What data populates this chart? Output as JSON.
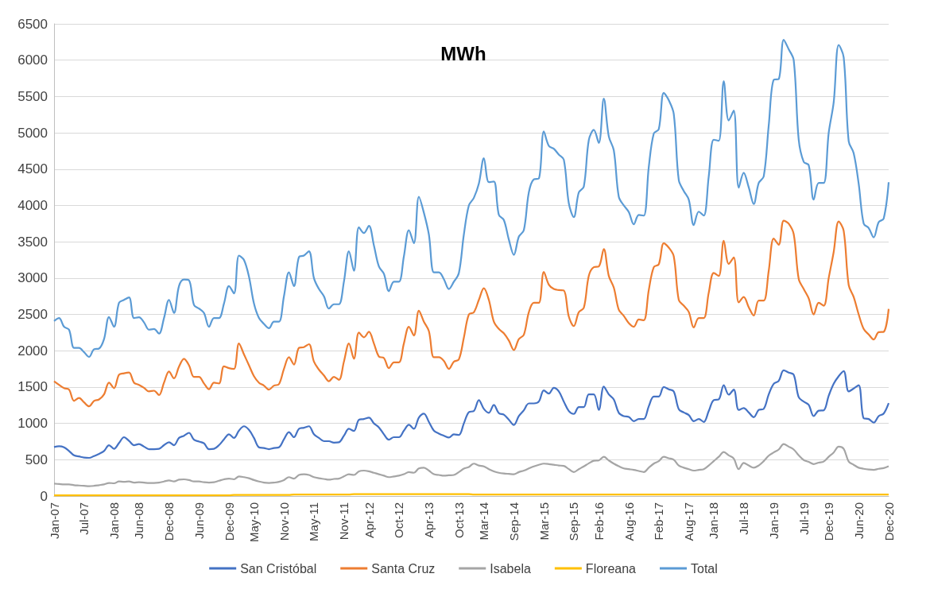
{
  "chart_data": {
    "type": "line",
    "title": "MWh",
    "categories": [
      "Jan-07",
      null,
      null,
      null,
      null,
      null,
      "Jul-07",
      null,
      null,
      null,
      null,
      null,
      "Jan-08",
      null,
      null,
      null,
      null,
      "Jun-08",
      null,
      null,
      null,
      null,
      null,
      "Dec-08",
      null,
      null,
      null,
      null,
      null,
      "Jun-09",
      null,
      null,
      null,
      null,
      null,
      "Dec-09",
      null,
      null,
      null,
      null,
      "May-10",
      null,
      null,
      null,
      null,
      null,
      "Nov-10",
      null,
      null,
      null,
      null,
      null,
      "May-11",
      null,
      null,
      null,
      null,
      null,
      "Nov-11",
      null,
      null,
      null,
      null,
      "Apr-12",
      null,
      null,
      null,
      null,
      null,
      "Oct-12",
      null,
      null,
      null,
      null,
      null,
      "Apr-13",
      null,
      null,
      null,
      null,
      null,
      "Oct-13",
      null,
      null,
      null,
      null,
      "Mar-14",
      null,
      null,
      null,
      null,
      null,
      "Sep-14",
      null,
      null,
      null,
      null,
      null,
      "Mar-15",
      null,
      null,
      null,
      null,
      null,
      "Sep-15",
      null,
      null,
      null,
      null,
      "Feb-16",
      null,
      null,
      null,
      null,
      null,
      "Aug-16",
      null,
      null,
      null,
      null,
      null,
      "Feb-17",
      null,
      null,
      null,
      null,
      null,
      "Aug-17",
      null,
      null,
      null,
      null,
      "Jan-18",
      null,
      null,
      null,
      null,
      null,
      "Jul-18",
      null,
      null,
      null,
      null,
      null,
      "Jan-19",
      null,
      null,
      null,
      null,
      null,
      "Jul-19",
      null,
      null,
      null,
      null,
      "Dec-19",
      null,
      null,
      null,
      null,
      null,
      "Jun-20",
      null,
      null,
      null,
      null,
      null,
      "Dec-20"
    ],
    "series": [
      {
        "name": "San Cristóbal",
        "color": "#4472c4",
        "values": [
          675,
          685,
          670,
          620,
          560,
          545,
          530,
          525,
          550,
          580,
          620,
          700,
          650,
          730,
          810,
          760,
          700,
          715,
          680,
          645,
          645,
          650,
          700,
          740,
          700,
          800,
          830,
          870,
          775,
          750,
          725,
          645,
          650,
          700,
          780,
          850,
          800,
          900,
          960,
          910,
          800,
          670,
          660,
          645,
          660,
          670,
          780,
          880,
          810,
          925,
          940,
          960,
          850,
          800,
          755,
          755,
          735,
          740,
          830,
          925,
          895,
          1050,
          1060,
          1080,
          1000,
          945,
          850,
          775,
          810,
          810,
          900,
          980,
          925,
          1080,
          1135,
          1020,
          900,
          860,
          830,
          805,
          850,
          840,
          1000,
          1155,
          1170,
          1320,
          1200,
          1145,
          1255,
          1140,
          1120,
          1050,
          978,
          1100,
          1180,
          1275,
          1275,
          1300,
          1455,
          1410,
          1490,
          1440,
          1300,
          1170,
          1130,
          1225,
          1225,
          1400,
          1400,
          1185,
          1505,
          1400,
          1330,
          1145,
          1100,
          1090,
          1030,
          1060,
          1060,
          1235,
          1370,
          1370,
          1500,
          1470,
          1440,
          1195,
          1150,
          1115,
          1030,
          1060,
          1020,
          1170,
          1320,
          1330,
          1525,
          1395,
          1465,
          1185,
          1210,
          1150,
          1085,
          1185,
          1200,
          1400,
          1545,
          1585,
          1730,
          1700,
          1670,
          1360,
          1300,
          1255,
          1100,
          1175,
          1180,
          1380,
          1545,
          1650,
          1720,
          1440,
          1480,
          1525,
          1070,
          1060,
          1010,
          1100,
          1135,
          1280
        ]
      },
      {
        "name": "Santa Cruz",
        "color": "#ed7d31",
        "values": [
          1580,
          1530,
          1485,
          1465,
          1310,
          1350,
          1290,
          1235,
          1310,
          1330,
          1400,
          1560,
          1485,
          1670,
          1690,
          1700,
          1560,
          1530,
          1490,
          1440,
          1450,
          1390,
          1560,
          1715,
          1620,
          1780,
          1890,
          1800,
          1640,
          1640,
          1550,
          1470,
          1560,
          1550,
          1785,
          1760,
          1750,
          2100,
          1950,
          1800,
          1650,
          1560,
          1520,
          1465,
          1520,
          1540,
          1750,
          1910,
          1810,
          2040,
          2050,
          2090,
          1850,
          1740,
          1660,
          1580,
          1640,
          1600,
          1850,
          2100,
          1890,
          2250,
          2185,
          2260,
          2100,
          1920,
          1900,
          1760,
          1840,
          1840,
          2100,
          2330,
          2210,
          2550,
          2400,
          2270,
          1910,
          1910,
          1860,
          1750,
          1850,
          1880,
          2180,
          2500,
          2530,
          2700,
          2860,
          2700,
          2400,
          2300,
          2240,
          2140,
          2010,
          2160,
          2220,
          2530,
          2660,
          2660,
          3085,
          2910,
          2850,
          2835,
          2830,
          2470,
          2340,
          2530,
          2590,
          3030,
          3150,
          3160,
          3400,
          3030,
          2870,
          2565,
          2480,
          2380,
          2330,
          2430,
          2420,
          2835,
          3150,
          3190,
          3480,
          3420,
          3300,
          2700,
          2620,
          2535,
          2320,
          2450,
          2450,
          2800,
          3070,
          3030,
          3515,
          3195,
          3285,
          2665,
          2740,
          2600,
          2485,
          2690,
          2690,
          3100,
          3545,
          3460,
          3790,
          3750,
          3605,
          2990,
          2850,
          2720,
          2500,
          2660,
          2620,
          3000,
          3360,
          3780,
          3650,
          2905,
          2740,
          2500,
          2300,
          2225,
          2155,
          2255,
          2260,
          2575
        ]
      },
      {
        "name": "Isabela",
        "color": "#a5a5a5",
        "values": [
          170,
          165,
          160,
          160,
          150,
          145,
          140,
          135,
          140,
          150,
          160,
          180,
          175,
          200,
          195,
          200,
          185,
          190,
          185,
          180,
          180,
          185,
          200,
          215,
          200,
          225,
          230,
          220,
          200,
          200,
          190,
          185,
          190,
          210,
          230,
          240,
          230,
          270,
          260,
          245,
          220,
          200,
          185,
          180,
          185,
          195,
          220,
          260,
          240,
          290,
          300,
          290,
          260,
          245,
          235,
          225,
          235,
          240,
          270,
          300,
          290,
          340,
          350,
          340,
          320,
          300,
          280,
          260,
          270,
          280,
          300,
          330,
          320,
          380,
          390,
          350,
          300,
          290,
          280,
          285,
          290,
          330,
          377,
          400,
          446,
          420,
          408,
          370,
          340,
          320,
          310,
          305,
          300,
          330,
          350,
          380,
          408,
          430,
          446,
          440,
          430,
          420,
          415,
          370,
          330,
          370,
          408,
          450,
          485,
          490,
          540,
          490,
          446,
          410,
          380,
          370,
          360,
          345,
          330,
          390,
          446,
          480,
          540,
          520,
          500,
          420,
          390,
          370,
          350,
          360,
          370,
          420,
          480,
          540,
          605,
          560,
          515,
          370,
          455,
          420,
          390,
          420,
          480,
          555,
          600,
          640,
          715,
          680,
          640,
          560,
          495,
          470,
          440,
          460,
          475,
          540,
          600,
          680,
          650,
          475,
          430,
          390,
          375,
          365,
          360,
          375,
          385,
          410
        ]
      },
      {
        "name": "Floreana",
        "color": "#ffc000",
        "values": [
          10,
          10,
          10,
          10,
          10,
          10,
          10,
          10,
          10,
          10,
          10,
          10,
          10,
          10,
          10,
          10,
          10,
          10,
          10,
          10,
          10,
          10,
          10,
          10,
          10,
          10,
          10,
          10,
          10,
          10,
          10,
          10,
          10,
          10,
          10,
          10,
          15,
          15,
          15,
          15,
          15,
          15,
          15,
          15,
          15,
          15,
          15,
          15,
          20,
          20,
          20,
          20,
          20,
          20,
          20,
          20,
          20,
          20,
          20,
          20,
          25,
          25,
          25,
          25,
          25,
          25,
          25,
          25,
          25,
          25,
          25,
          25,
          25,
          25,
          25,
          25,
          25,
          25,
          25,
          25,
          25,
          25,
          25,
          25,
          20,
          20,
          20,
          20,
          20,
          20,
          20,
          20,
          20,
          20,
          20,
          20,
          20,
          20,
          20,
          20,
          20,
          20,
          20,
          20,
          20,
          20,
          20,
          20,
          20,
          20,
          20,
          20,
          20,
          20,
          20,
          20,
          20,
          20,
          20,
          20,
          20,
          20,
          20,
          20,
          20,
          20,
          20,
          20,
          20,
          20,
          20,
          20,
          20,
          20,
          20,
          20,
          20,
          20,
          20,
          20,
          20,
          20,
          20,
          20,
          20,
          20,
          20,
          20,
          20,
          20,
          20,
          20,
          20,
          20,
          20,
          20,
          20,
          20,
          20,
          20,
          20,
          20,
          20,
          20,
          20,
          20,
          20,
          20
        ]
      },
      {
        "name": "Total",
        "color": "#5b9bd5",
        "values": [
          2410,
          2450,
          2330,
          2290,
          2040,
          2040,
          1980,
          1915,
          2020,
          2030,
          2160,
          2465,
          2330,
          2660,
          2700,
          2735,
          2450,
          2460,
          2390,
          2290,
          2300,
          2235,
          2450,
          2700,
          2520,
          2890,
          2980,
          2970,
          2630,
          2580,
          2520,
          2330,
          2450,
          2450,
          2650,
          2890,
          2790,
          3310,
          3250,
          3020,
          2650,
          2450,
          2370,
          2310,
          2400,
          2400,
          2750,
          3080,
          2890,
          3290,
          3310,
          3370,
          3000,
          2850,
          2750,
          2580,
          2640,
          2640,
          2950,
          3370,
          3100,
          3700,
          3620,
          3720,
          3450,
          3160,
          3060,
          2820,
          2950,
          2950,
          3300,
          3660,
          3480,
          4120,
          3900,
          3600,
          3080,
          3080,
          2985,
          2850,
          2950,
          3070,
          3600,
          4000,
          4105,
          4300,
          4650,
          4320,
          4330,
          3870,
          3800,
          3530,
          3320,
          3570,
          3660,
          4180,
          4360,
          4370,
          5020,
          4820,
          4780,
          4700,
          4630,
          4030,
          3840,
          4180,
          4260,
          4900,
          5040,
          4860,
          5470,
          4950,
          4760,
          4120,
          4000,
          3910,
          3740,
          3870,
          3860,
          4530,
          4990,
          5050,
          5550,
          5450,
          5260,
          4350,
          4200,
          4080,
          3730,
          3915,
          3860,
          4400,
          4905,
          4890,
          5710,
          5170,
          5305,
          4245,
          4450,
          4250,
          4020,
          4310,
          4400,
          5100,
          5730,
          5740,
          6280,
          6150,
          6000,
          4905,
          4600,
          4555,
          4080,
          4310,
          4310,
          5000,
          5420,
          6210,
          6040,
          4885,
          4720,
          4300,
          3750,
          3690,
          3560,
          3770,
          3820,
          4320
        ]
      }
    ],
    "ylim": [
      0,
      6500
    ],
    "yticks": [
      0,
      500,
      1000,
      1500,
      2000,
      2500,
      3000,
      3500,
      4000,
      4500,
      5000,
      5500,
      6000,
      6500
    ],
    "grid": "y",
    "legend": "bottom",
    "marker": "none"
  }
}
